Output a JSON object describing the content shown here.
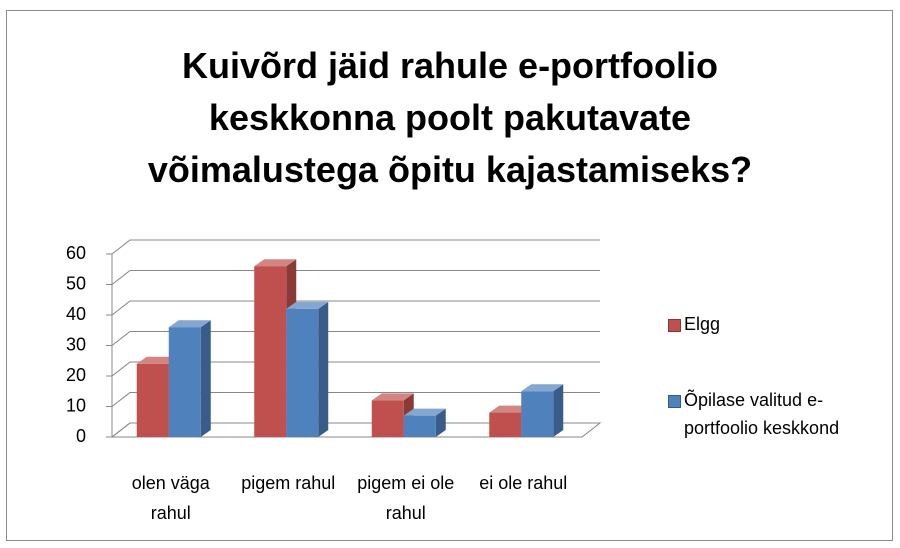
{
  "chart_data": {
    "type": "bar3d",
    "title": "Kuivõrd jäid rahule e-portfoolio keskkonna poolt pakutavate võimalustega õpitu kajastamiseks?",
    "categories": [
      "olen väga rahul",
      "pigem rahul",
      "pigem ei ole rahul",
      "ei ole rahul"
    ],
    "series": [
      {
        "name": "Elgg",
        "color": "#c0504d",
        "values": [
          24,
          56,
          12,
          8
        ]
      },
      {
        "name": "Õpilase valitud e-portfoolio keskkond",
        "color": "#4f81bd",
        "values": [
          36,
          42,
          7,
          15
        ]
      }
    ],
    "ylim": [
      0,
      60
    ],
    "yticks": [
      0,
      10,
      20,
      30,
      40,
      50,
      60
    ],
    "grid": true,
    "legend": "right"
  }
}
